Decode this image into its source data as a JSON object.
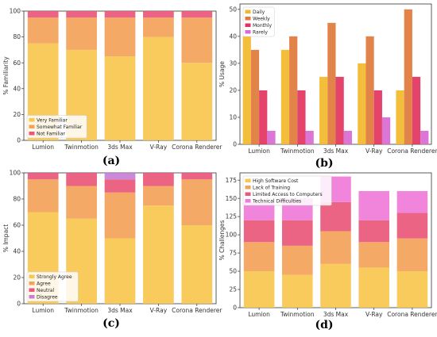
{
  "chart_data": [
    {
      "panel": "(a)",
      "type": "bar",
      "stacked": true,
      "categories": [
        "Lumion",
        "Twinmotion",
        "3ds Max",
        "V-Ray",
        "Corona Renderer"
      ],
      "ylabel": "% Familiarity",
      "ylim": [
        0,
        100
      ],
      "yticks": [
        0,
        20,
        40,
        60,
        80,
        100
      ],
      "legend_position": "bottom-left",
      "series": [
        {
          "name": "Very Familiar",
          "color": "#f9c74f",
          "values": [
            75,
            70,
            65,
            80,
            60
          ]
        },
        {
          "name": "Somewhat Familiar",
          "color": "#f3a259",
          "values": [
            20,
            25,
            30,
            15,
            35
          ]
        },
        {
          "name": "Not Familiar",
          "color": "#e9577a",
          "values": [
            5,
            5,
            5,
            5,
            5
          ]
        }
      ]
    },
    {
      "panel": "(b)",
      "type": "bar",
      "stacked": false,
      "categories": [
        "Lumion",
        "Twinmotion",
        "3ds Max",
        "V-Ray",
        "Corona Renderer"
      ],
      "ylabel": "% Usage",
      "ylim": [
        0,
        52
      ],
      "yticks": [
        0,
        10,
        20,
        30,
        40,
        50
      ],
      "legend_position": "top-left",
      "series": [
        {
          "name": "Daily",
          "color": "#f2b82a",
          "values": [
            40,
            35,
            25,
            30,
            20
          ]
        },
        {
          "name": "Weekly",
          "color": "#e07a3a",
          "values": [
            35,
            40,
            45,
            40,
            50
          ]
        },
        {
          "name": "Monthly",
          "color": "#e2335f",
          "values": [
            20,
            20,
            25,
            20,
            25
          ]
        },
        {
          "name": "Rarely",
          "color": "#d86ad2",
          "values": [
            5,
            5,
            5,
            10,
            5
          ]
        }
      ]
    },
    {
      "panel": "(c)",
      "type": "bar",
      "stacked": true,
      "categories": [
        "Lumion",
        "Twinmotion",
        "3ds Max",
        "V-Ray",
        "Corona Renderer"
      ],
      "ylabel": "% Impact",
      "ylim": [
        0,
        100
      ],
      "yticks": [
        0,
        20,
        40,
        60,
        80,
        100
      ],
      "legend_position": "bottom-left",
      "series": [
        {
          "name": "Strongly Agree",
          "color": "#f9c74f",
          "values": [
            70,
            65,
            50,
            75,
            60
          ]
        },
        {
          "name": "Agree",
          "color": "#f3a259",
          "values": [
            25,
            25,
            35,
            15,
            35
          ]
        },
        {
          "name": "Neutral",
          "color": "#e9577a",
          "values": [
            5,
            10,
            10,
            10,
            5
          ]
        },
        {
          "name": "Disagree",
          "color": "#c77fd6",
          "values": [
            0,
            0,
            5,
            0,
            0
          ]
        }
      ]
    },
    {
      "panel": "(d)",
      "type": "bar",
      "stacked": true,
      "categories": [
        "Lumion",
        "Twinmotion",
        "3ds Max",
        "V-Ray",
        "Corona Renderer"
      ],
      "ylabel": "% Challenges",
      "ylim": [
        0,
        185
      ],
      "yticks": [
        0,
        25,
        50,
        75,
        100,
        125,
        150,
        175
      ],
      "legend_position": "top-left",
      "series": [
        {
          "name": "High Software Cost",
          "color": "#f9c74f",
          "values": [
            50,
            45,
            60,
            55,
            50
          ]
        },
        {
          "name": "Lack of Training",
          "color": "#f3a259",
          "values": [
            40,
            40,
            45,
            35,
            45
          ]
        },
        {
          "name": "Limited Access to Computers",
          "color": "#e9577a",
          "values": [
            30,
            35,
            40,
            30,
            35
          ]
        },
        {
          "name": "Technical Difficulties",
          "color": "#f07ad8",
          "values": [
            25,
            30,
            35,
            40,
            30
          ]
        }
      ]
    }
  ]
}
